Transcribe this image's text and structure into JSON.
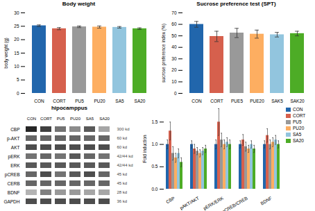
{
  "chart_data": [
    {
      "type": "bar",
      "title": "Body weight",
      "categories": [
        "CON",
        "CORT",
        "PU5",
        "PU20",
        "SA5",
        "SA20"
      ],
      "values": [
        25.2,
        24.1,
        24.8,
        24.7,
        24.6,
        24.1
      ],
      "errors": [
        0.3,
        0.4,
        0.3,
        0.4,
        0.3,
        0.3
      ],
      "colors": [
        "#2166ac",
        "#d6604d",
        "#999999",
        "#fdae61",
        "#92c5de",
        "#4dac26"
      ],
      "ylabel": "body weight (g)",
      "ylim": [
        0,
        30
      ],
      "yticks": [
        0,
        5,
        10,
        15,
        20,
        25,
        30
      ]
    },
    {
      "type": "bar",
      "title": "Sucrose preference test (SPT)",
      "categories": [
        "CON",
        "CORT",
        "PUE5",
        "PUE20",
        "SAK5",
        "SAK20"
      ],
      "values": [
        60.0,
        49.5,
        52.5,
        51.5,
        51.0,
        52.0
      ],
      "errors": [
        2.5,
        4.5,
        4.0,
        3.5,
        2.0,
        2.0
      ],
      "colors": [
        "#2166ac",
        "#d6604d",
        "#999999",
        "#fdae61",
        "#92c5de",
        "#4dac26"
      ],
      "ylabel": "sucrose preference index (%)",
      "ylim": [
        0,
        70
      ],
      "yticks": [
        0,
        10,
        20,
        30,
        40,
        50,
        60,
        70
      ]
    },
    {
      "type": "heatmap",
      "title": "hipocamppus",
      "categories": [
        "CON",
        "CORT",
        "PU5",
        "PU20",
        "SA5",
        "SA20"
      ],
      "rows": [
        "CBP",
        "p-AKT",
        "AKT",
        "pERK",
        "ERK",
        "pCREB",
        "CERB",
        "BDNF",
        "GAPDH"
      ],
      "row_labels_right": [
        "300 kd",
        "60 kd",
        "60 kd",
        "42/44 kd",
        "42/44 kd",
        "45 kd",
        "45 kd",
        "28 kd",
        "36 kd"
      ],
      "cells": [
        [
          0.85,
          0.75,
          0.55,
          0.45,
          0.65,
          0.35
        ],
        [
          0.6,
          0.6,
          0.6,
          0.6,
          0.6,
          0.6
        ],
        [
          0.7,
          0.7,
          0.7,
          0.7,
          0.7,
          0.7
        ],
        [
          0.55,
          0.6,
          0.55,
          0.65,
          0.6,
          0.55
        ],
        [
          0.65,
          0.65,
          0.65,
          0.65,
          0.65,
          0.65
        ],
        [
          0.6,
          0.7,
          0.55,
          0.65,
          0.7,
          0.6
        ],
        [
          0.6,
          0.6,
          0.6,
          0.6,
          0.6,
          0.6
        ],
        [
          0.3,
          0.5,
          0.4,
          0.4,
          0.35,
          0.35
        ],
        [
          0.7,
          0.7,
          0.7,
          0.7,
          0.7,
          0.7
        ]
      ]
    },
    {
      "type": "bar",
      "categories": [
        "CBP",
        "pAKT/AKT",
        "pERK/ERK",
        "pCREB/CREB",
        "BDNF"
      ],
      "series": [
        {
          "name": "CON",
          "color": "#2166ac",
          "values": [
            1.0,
            1.0,
            1.0,
            1.0,
            1.0
          ],
          "errors": [
            0.1,
            0.08,
            0.1,
            0.08,
            0.08
          ]
        },
        {
          "name": "CORT",
          "color": "#d6604d",
          "values": [
            1.3,
            0.9,
            1.5,
            1.1,
            1.2
          ],
          "errors": [
            0.2,
            0.1,
            0.3,
            0.12,
            0.15
          ]
        },
        {
          "name": "PU5",
          "color": "#999999",
          "values": [
            0.8,
            0.85,
            1.1,
            0.95,
            1.0
          ],
          "errors": [
            0.15,
            0.08,
            0.15,
            0.1,
            0.1
          ]
        },
        {
          "name": "PU20",
          "color": "#fdae61",
          "values": [
            0.7,
            0.8,
            1.0,
            0.9,
            1.05
          ],
          "errors": [
            0.1,
            0.08,
            0.1,
            0.08,
            0.1
          ]
        },
        {
          "name": "SA5",
          "color": "#92c5de",
          "values": [
            0.8,
            0.85,
            1.05,
            1.0,
            1.1
          ],
          "errors": [
            0.1,
            0.08,
            0.1,
            0.08,
            0.1
          ]
        },
        {
          "name": "SA20",
          "color": "#4dac26",
          "values": [
            0.6,
            0.9,
            1.0,
            0.9,
            1.0
          ],
          "errors": [
            0.1,
            0.08,
            0.1,
            0.08,
            0.08
          ]
        }
      ],
      "ylabel": "Fold induction",
      "ylim": [
        0,
        1.8
      ],
      "yticks": [
        {
          "value": 0,
          "label": "0.0"
        },
        0.5,
        {
          "value": 1.0,
          "label": "1.0"
        },
        1.5
      ],
      "legend": "upper right"
    }
  ]
}
